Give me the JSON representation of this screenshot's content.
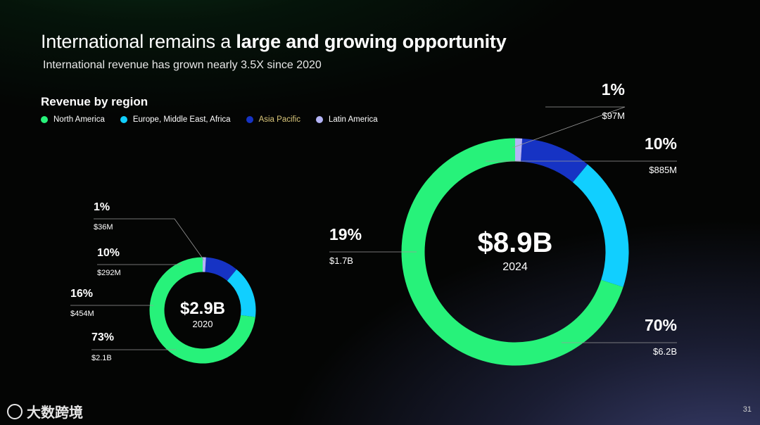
{
  "slide": {
    "title_regular": "International remains a ",
    "title_bold": "large and growing opportunity",
    "subtitle": "International revenue has grown nearly 3.5X since 2020",
    "section_title": "Revenue by region",
    "page_number": "31",
    "watermark": "大数跨境"
  },
  "legend": [
    {
      "name": "North America",
      "color": "#27f27a"
    },
    {
      "name": "Europe, Middle East, Africa",
      "color": "#11cfff"
    },
    {
      "name": "Asia Pacific",
      "color": "#1633c4"
    },
    {
      "name": "Latin America",
      "color": "#b4b4f6"
    }
  ],
  "chart_data": [
    {
      "type": "pie",
      "total_label": "$2.9B",
      "year": "2020",
      "categories": [
        "North America",
        "Europe, Middle East, Africa",
        "Asia Pacific",
        "Latin America"
      ],
      "values": [
        73,
        16,
        10,
        1
      ],
      "value_labels": [
        "$2.1B",
        "$454M",
        "$292M",
        "$36M"
      ],
      "percent_labels": [
        "73%",
        "16%",
        "10%",
        "1%"
      ]
    },
    {
      "type": "pie",
      "total_label": "$8.9B",
      "year": "2024",
      "categories": [
        "North America",
        "Europe, Middle East, Africa",
        "Asia Pacific",
        "Latin America"
      ],
      "values": [
        70,
        19,
        10,
        1
      ],
      "value_labels": [
        "$6.2B",
        "$1.7B",
        "$885M",
        "$97M"
      ],
      "percent_labels": [
        "70%",
        "19%",
        "10%",
        "1%"
      ]
    }
  ]
}
